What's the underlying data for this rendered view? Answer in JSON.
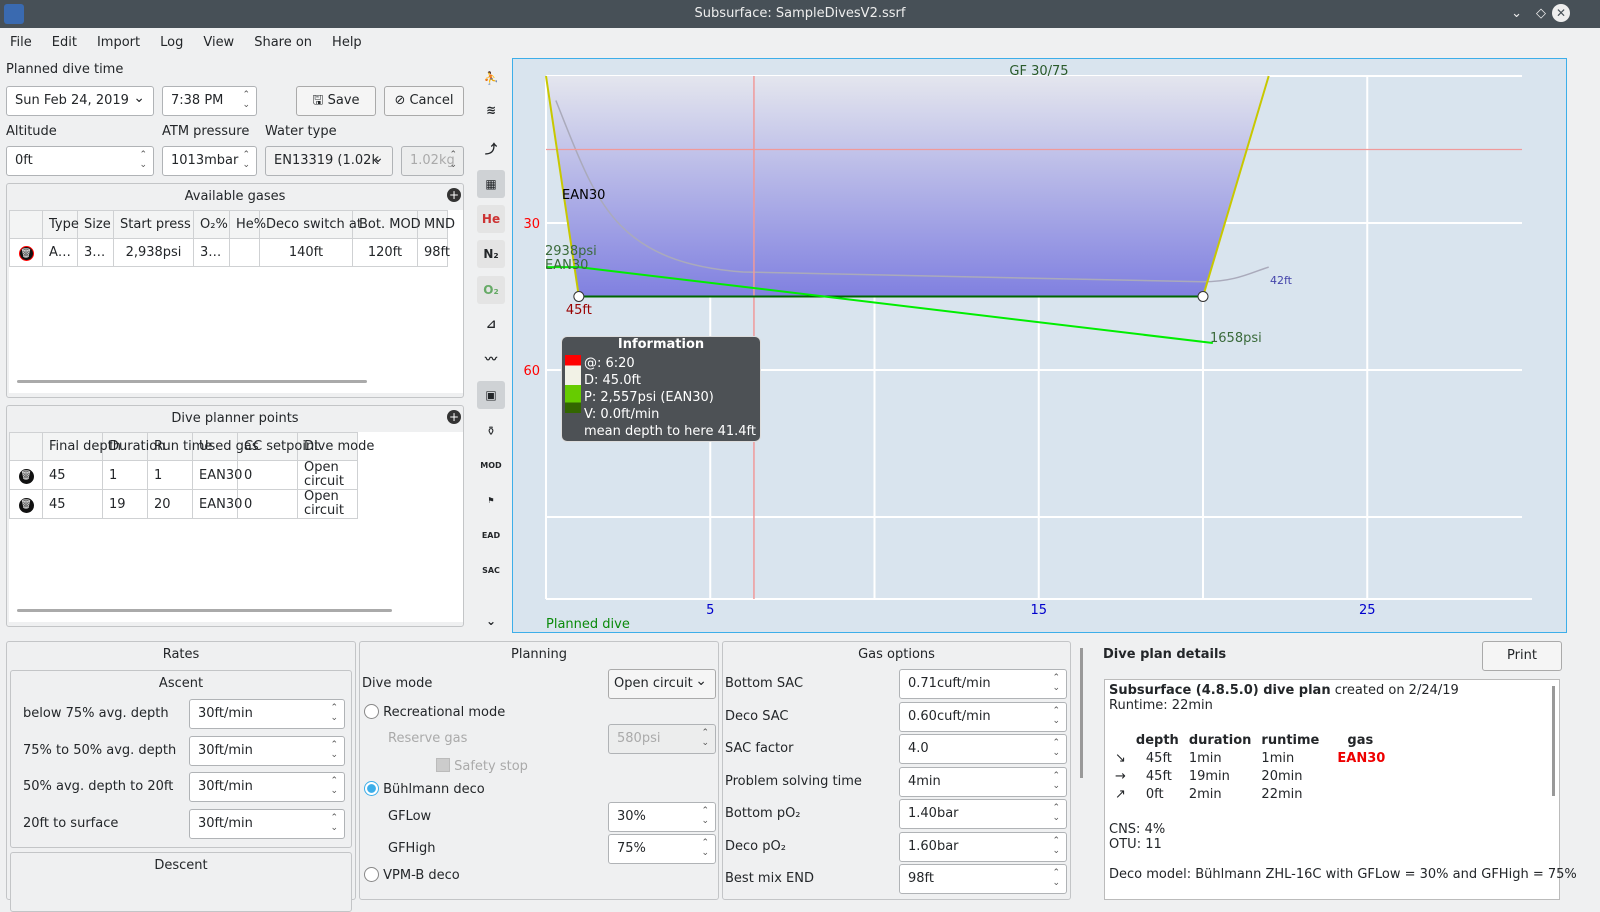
{
  "window": {
    "title": "Subsurface: SampleDivesV2.ssrf"
  },
  "menu": [
    "File",
    "Edit",
    "Import",
    "Log",
    "View",
    "Share on",
    "Help"
  ],
  "planner": {
    "planned_dive_time_label": "Planned dive time",
    "date": "Sun Feb 24, 2019",
    "time": "7:38 PM",
    "save": "Save",
    "cancel": "Cancel",
    "altitude_label": "Altitude",
    "altitude": "0ft",
    "atm_label": "ATM pressure",
    "atm": "1013mbar",
    "water_label": "Water type",
    "water": "EN13319 (1.02k",
    "water_density": "1.02kg"
  },
  "gases": {
    "title": "Available gases",
    "headers": [
      "Type",
      "Size",
      "Start press",
      "O₂%",
      "He%",
      "Deco switch at",
      "Bot. MOD",
      "MND"
    ],
    "rows": [
      [
        "A…",
        "3…",
        "2,938psi",
        "3…",
        "",
        "140ft",
        "120ft",
        "98ft"
      ]
    ]
  },
  "points": {
    "title": "Dive planner points",
    "headers": [
      "Final depth",
      "Duration",
      "Run time",
      "Used gas",
      "CC setpoint",
      "Dive mode"
    ],
    "rows": [
      [
        "45",
        "1",
        "1",
        "EAN30",
        "0",
        "Open circuit"
      ],
      [
        "45",
        "19",
        "20",
        "EAN30",
        "0",
        "Open circuit"
      ]
    ]
  },
  "toolbar_icons": [
    "diver-icon",
    "tissue-icon",
    "ceiling-icon",
    "calculated-ceiling-icon",
    "he-icon",
    "n2-icon",
    "o2-icon",
    "ruler-icon",
    "scale-icon",
    "pictures-icon",
    "tank-icon",
    "mod-icon",
    "npd-icon",
    "ead-icon",
    "sac-icon",
    "chevron-down-icon"
  ],
  "profile": {
    "gf_label": "GF 30/75",
    "footer": "Planned dive",
    "gas_label": "EAN30",
    "start_pressure": "2938psi",
    "start_gas": "EAN30",
    "end_pressure": "1658psi",
    "max_depth_label": "45ft",
    "ceiling_label": "42ft",
    "x_ticks": [
      5,
      15,
      25
    ],
    "y_ticks": [
      30,
      60
    ],
    "profile_points": [
      [
        0,
        0
      ],
      [
        1,
        45
      ],
      [
        20,
        45
      ],
      [
        22,
        0
      ]
    ],
    "cursor_minute": 6.33,
    "info": {
      "title": "Information",
      "lines": [
        "@: 6:20",
        "D: 45.0ft",
        "P: 2,557psi (EAN30)",
        "V: 0.0ft/min",
        "mean depth to here 41.4ft"
      ]
    },
    "colors": {
      "depth": "#c8c800",
      "pressure": "#00ee00",
      "axis_depth": "#ff0000",
      "axis_time": "#0000cc",
      "fill": "#8080e0"
    }
  },
  "rates": {
    "title": "Rates",
    "ascent_title": "Ascent",
    "ascent": [
      {
        "label": "below 75% avg. depth",
        "value": "30ft/min"
      },
      {
        "label": "75% to 50% avg. depth",
        "value": "30ft/min"
      },
      {
        "label": "50% avg. depth to 20ft",
        "value": "30ft/min"
      },
      {
        "label": "20ft to surface",
        "value": "30ft/min"
      }
    ],
    "descent_title": "Descent"
  },
  "planning": {
    "title": "Planning",
    "dive_mode_label": "Dive mode",
    "dive_mode": "Open circuit",
    "recreational": "Recreational mode",
    "reserve_label": "Reserve gas",
    "reserve": "580psi",
    "safety_stop": "Safety stop",
    "buhlmann": "Bühlmann deco",
    "gflow_label": "GFLow",
    "gflow": "30%",
    "gfhigh_label": "GFHigh",
    "gfhigh": "75%",
    "vpm": "VPM-B deco"
  },
  "gas_options": {
    "title": "Gas options",
    "items": [
      {
        "label": "Bottom SAC",
        "value": "0.71cuft/min"
      },
      {
        "label": "Deco SAC",
        "value": "0.60cuft/min"
      },
      {
        "label": "SAC factor",
        "value": "4.0"
      },
      {
        "label": "Problem solving time",
        "value": "4min"
      },
      {
        "label": "Bottom pO₂",
        "value": "1.40bar"
      },
      {
        "label": "Deco pO₂",
        "value": "1.60bar"
      },
      {
        "label": "Best mix END",
        "value": "98ft"
      }
    ]
  },
  "details": {
    "title": "Dive plan details",
    "print": "Print",
    "heading_bold": "Subsurface (4.8.5.0) dive plan",
    "heading_rest": " created on 2/24/19",
    "runtime": "Runtime: 22min",
    "headers": [
      "depth",
      "duration",
      "runtime",
      "gas"
    ],
    "rows": [
      [
        "↘",
        "45ft",
        "1min",
        "1min",
        "EAN30"
      ],
      [
        "→",
        "45ft",
        "19min",
        "20min",
        ""
      ],
      [
        "↗",
        "0ft",
        "2min",
        "22min",
        ""
      ]
    ],
    "cns": "CNS: 4%",
    "otu": "OTU: 11",
    "deco_model": "Deco model: Bühlmann ZHL-16C with GFLow = 30% and GFHigh = 75%"
  }
}
